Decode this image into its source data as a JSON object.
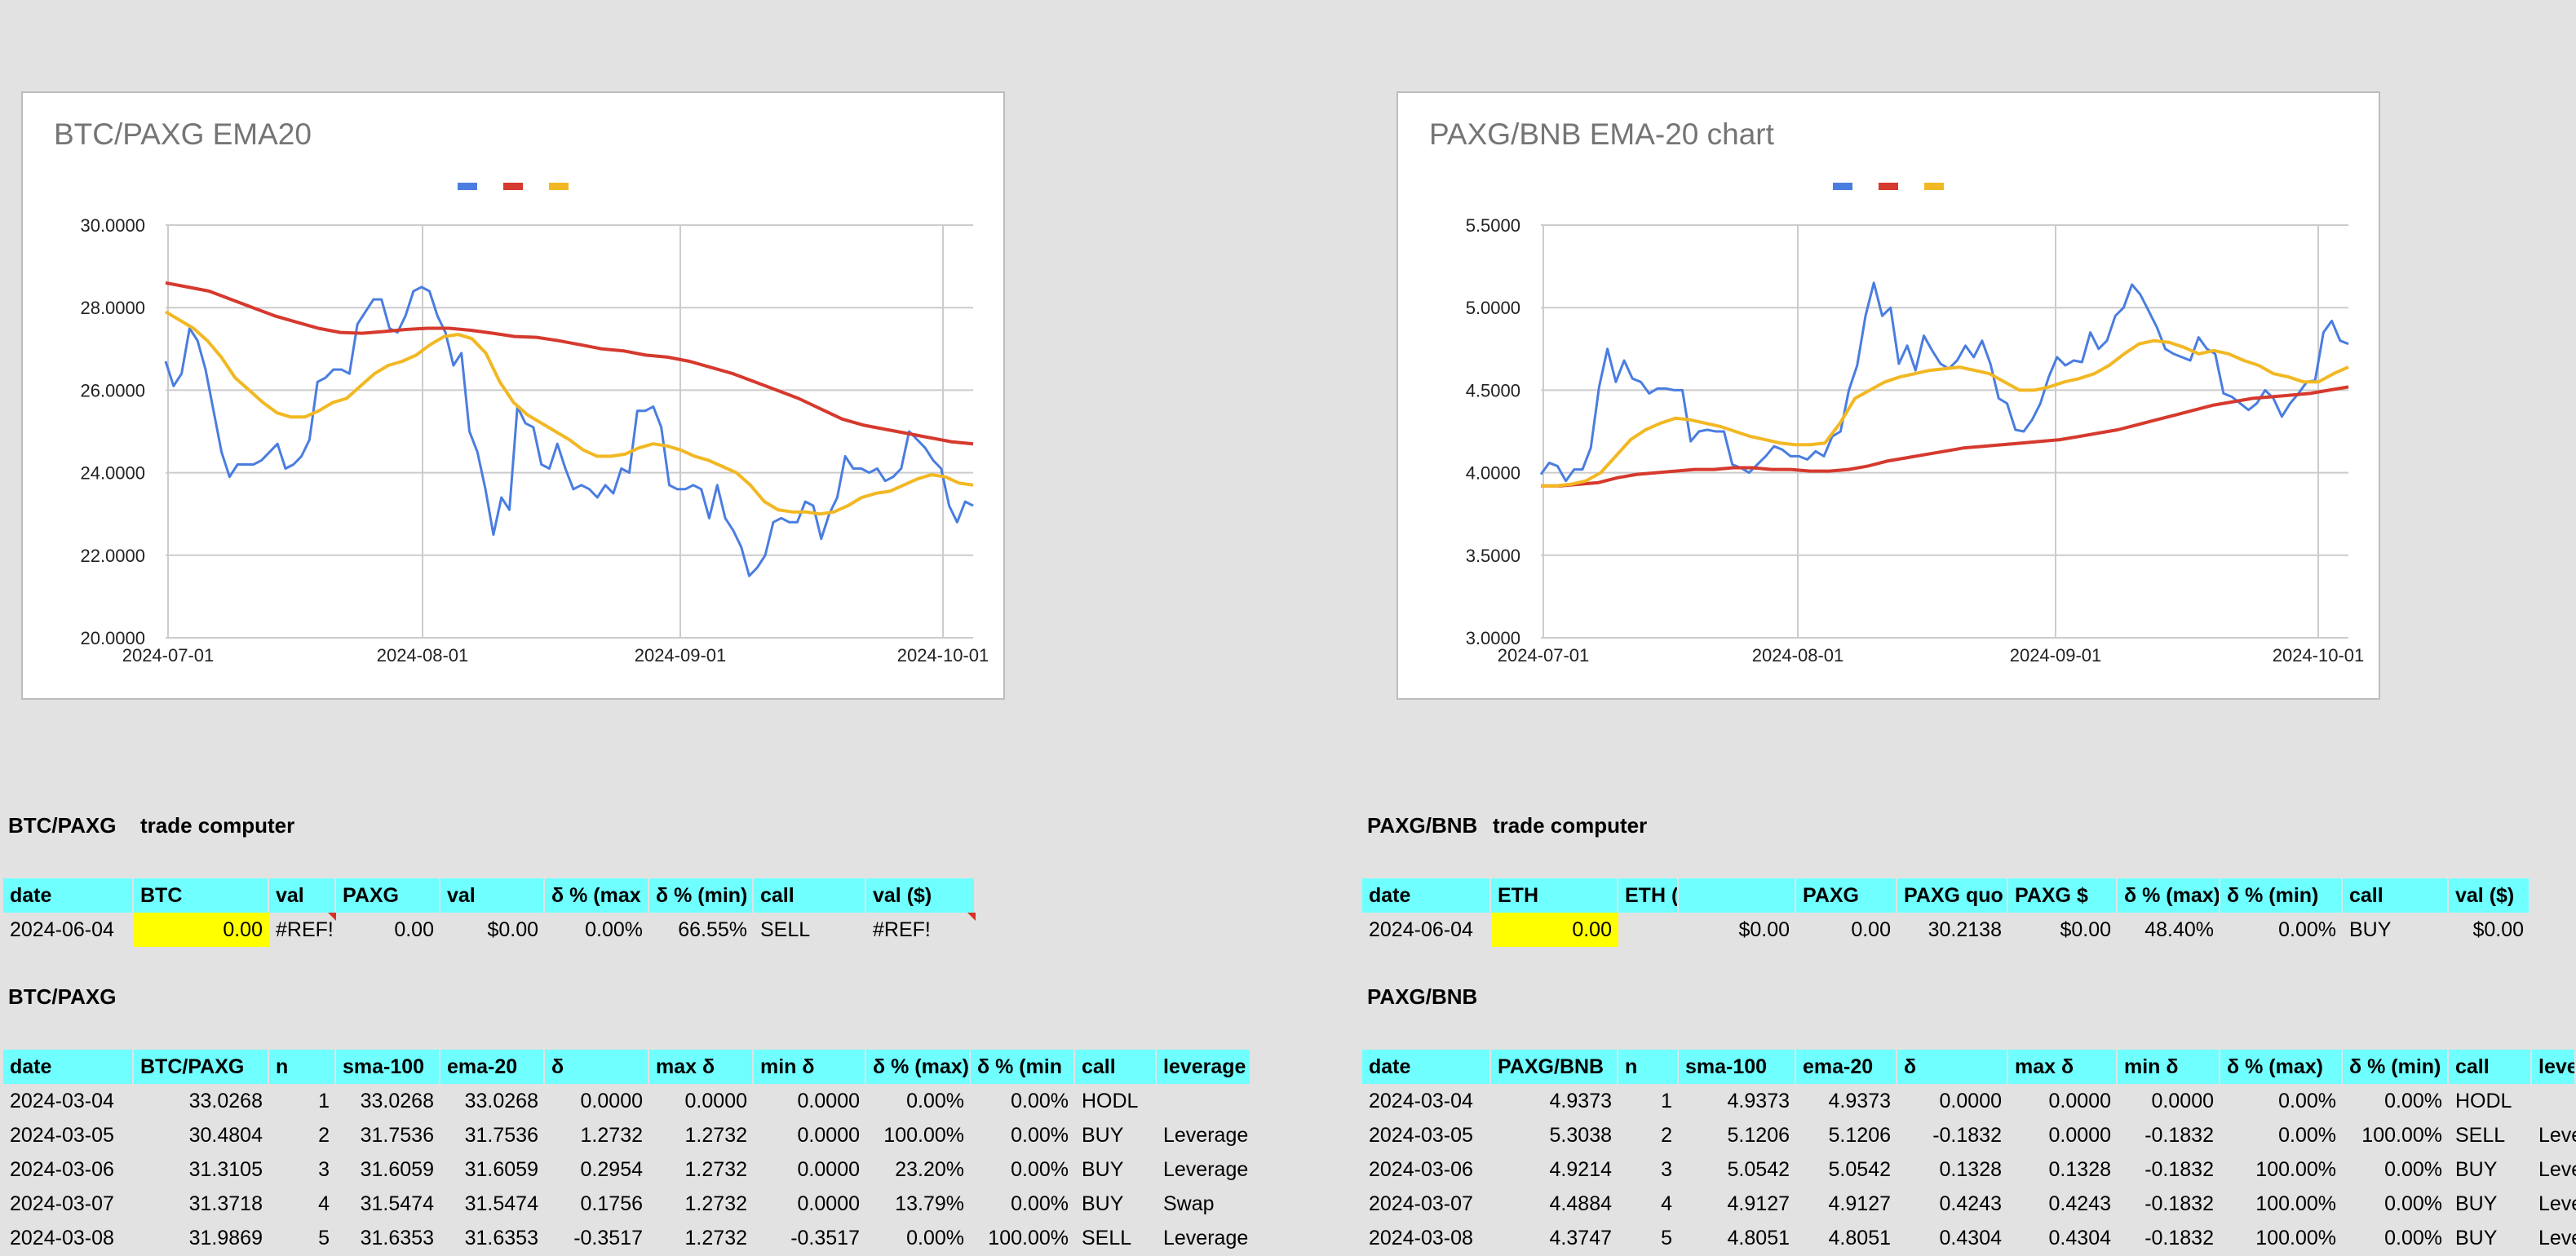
{
  "colors": {
    "blue": "#4a7de0",
    "red": "#d6392e",
    "yellow": "#f2b824",
    "header": "#6fffff",
    "input": "#ffff00"
  },
  "chart_data": [
    {
      "type": "line",
      "title": "BTC/PAXG EMA20",
      "legend_position": "top",
      "grid": true,
      "yticks": [
        "30.0000",
        "28.0000",
        "26.0000",
        "24.0000",
        "22.0000",
        "20.0000"
      ],
      "xticks": [
        "2024-07-01",
        "2024-08-01",
        "2024-09-01",
        "2024-10-01"
      ],
      "ylim": [
        20,
        30
      ],
      "series": [
        {
          "color": "#4a7de0",
          "values": [
            26.7,
            26.1,
            26.4,
            27.5,
            27.2,
            26.5,
            25.5,
            24.5,
            23.9,
            24.2,
            24.2,
            24.2,
            24.3,
            24.5,
            24.7,
            24.1,
            24.2,
            24.4,
            24.8,
            26.2,
            26.3,
            26.5,
            26.5,
            26.4,
            27.6,
            27.9,
            28.2,
            28.2,
            27.5,
            27.4,
            27.8,
            28.4,
            28.5,
            28.4,
            27.8,
            27.4,
            26.6,
            26.9,
            25.0,
            24.5,
            23.6,
            22.5,
            23.4,
            23.1,
            25.6,
            25.2,
            25.1,
            24.2,
            24.1,
            24.7,
            24.1,
            23.6,
            23.7,
            23.6,
            23.4,
            23.7,
            23.5,
            24.1,
            24.0,
            25.5,
            25.5,
            25.6,
            25.1,
            23.7,
            23.6,
            23.6,
            23.7,
            23.6,
            22.9,
            23.7,
            22.9,
            22.6,
            22.2,
            21.5,
            21.7,
            22.0,
            22.8,
            22.9,
            22.8,
            22.8,
            23.3,
            23.2,
            22.4,
            23.0,
            23.4,
            24.4,
            24.1,
            24.1,
            24.0,
            24.1,
            23.8,
            23.9,
            24.1,
            25.0,
            24.8,
            24.6,
            24.3,
            24.1,
            23.2,
            22.8,
            23.3,
            23.2
          ]
        },
        {
          "color": "#d6392e",
          "values": [
            28.6,
            28.5,
            28.4,
            28.2,
            28.0,
            27.8,
            27.65,
            27.5,
            27.4,
            27.38,
            27.42,
            27.47,
            27.5,
            27.5,
            27.45,
            27.38,
            27.3,
            27.28,
            27.2,
            27.1,
            27.0,
            26.95,
            26.85,
            26.8,
            26.7,
            26.55,
            26.4,
            26.2,
            26.0,
            25.8,
            25.55,
            25.3,
            25.15,
            25.05,
            24.95,
            24.85,
            24.75,
            24.7
          ]
        },
        {
          "color": "#f2b824",
          "values": [
            27.9,
            27.7,
            27.5,
            27.2,
            26.8,
            26.3,
            26.0,
            25.7,
            25.45,
            25.35,
            25.35,
            25.5,
            25.7,
            25.8,
            26.1,
            26.4,
            26.6,
            26.7,
            26.85,
            27.1,
            27.3,
            27.35,
            27.25,
            26.9,
            26.2,
            25.7,
            25.4,
            25.2,
            25.0,
            24.8,
            24.55,
            24.4,
            24.4,
            24.45,
            24.6,
            24.7,
            24.65,
            24.55,
            24.4,
            24.3,
            24.15,
            24.0,
            23.7,
            23.3,
            23.1,
            23.05,
            23.05,
            23.0,
            23.05,
            23.2,
            23.4,
            23.5,
            23.55,
            23.7,
            23.85,
            23.95,
            23.9,
            23.75,
            23.7
          ]
        }
      ]
    },
    {
      "type": "line",
      "title": "PAXG/BNB EMA-20 chart",
      "legend_position": "top",
      "grid": true,
      "yticks": [
        "5.5000",
        "5.0000",
        "4.5000",
        "4.0000",
        "3.5000",
        "3.0000"
      ],
      "xticks": [
        "2024-07-01",
        "2024-08-01",
        "2024-09-01",
        "2024-10-01"
      ],
      "ylim": [
        3,
        5.5
      ],
      "series": [
        {
          "color": "#4a7de0",
          "values": [
            3.99,
            4.06,
            4.04,
            3.95,
            4.02,
            4.02,
            4.15,
            4.52,
            4.75,
            4.55,
            4.68,
            4.57,
            4.55,
            4.48,
            4.51,
            4.51,
            4.5,
            4.5,
            4.19,
            4.25,
            4.26,
            4.25,
            4.25,
            4.05,
            4.03,
            4.0,
            4.05,
            4.1,
            4.16,
            4.14,
            4.1,
            4.1,
            4.08,
            4.13,
            4.1,
            4.22,
            4.25,
            4.5,
            4.65,
            4.95,
            5.15,
            4.95,
            5.0,
            4.66,
            4.77,
            4.62,
            4.83,
            4.74,
            4.66,
            4.63,
            4.68,
            4.77,
            4.7,
            4.8,
            4.66,
            4.45,
            4.42,
            4.26,
            4.25,
            4.32,
            4.42,
            4.58,
            4.7,
            4.65,
            4.68,
            4.67,
            4.85,
            4.75,
            4.8,
            4.95,
            5.0,
            5.14,
            5.08,
            4.98,
            4.88,
            4.75,
            4.72,
            4.7,
            4.68,
            4.82,
            4.75,
            4.72,
            4.48,
            4.46,
            4.42,
            4.38,
            4.42,
            4.5,
            4.45,
            4.34,
            4.42,
            4.48,
            4.55,
            4.56,
            4.85,
            4.92,
            4.8,
            4.78
          ]
        },
        {
          "color": "#d6392e",
          "values": [
            3.92,
            3.92,
            3.93,
            3.94,
            3.97,
            3.99,
            4.0,
            4.01,
            4.02,
            4.02,
            4.03,
            4.03,
            4.02,
            4.02,
            4.01,
            4.01,
            4.02,
            4.04,
            4.07,
            4.09,
            4.11,
            4.13,
            4.15,
            4.16,
            4.17,
            4.18,
            4.19,
            4.2,
            4.22,
            4.24,
            4.26,
            4.29,
            4.32,
            4.35,
            4.38,
            4.41,
            4.43,
            4.45,
            4.46,
            4.47,
            4.48,
            4.5,
            4.52
          ]
        },
        {
          "color": "#f2b824",
          "values": [
            3.92,
            3.92,
            3.93,
            3.95,
            4.0,
            4.1,
            4.2,
            4.26,
            4.3,
            4.33,
            4.32,
            4.3,
            4.28,
            4.25,
            4.22,
            4.2,
            4.18,
            4.17,
            4.17,
            4.18,
            4.3,
            4.45,
            4.5,
            4.55,
            4.58,
            4.6,
            4.62,
            4.63,
            4.64,
            4.62,
            4.6,
            4.55,
            4.5,
            4.5,
            4.52,
            4.55,
            4.57,
            4.6,
            4.65,
            4.72,
            4.78,
            4.8,
            4.79,
            4.76,
            4.72,
            4.74,
            4.72,
            4.68,
            4.65,
            4.6,
            4.58,
            4.55,
            4.55,
            4.6,
            4.64
          ]
        }
      ]
    }
  ],
  "left": {
    "trade_label1": "BTC/PAXG",
    "trade_label2": "trade computer",
    "trade_headers": [
      "date",
      "BTC",
      "val",
      "PAXG",
      "val",
      "δ % (max",
      "δ % (min)",
      "call",
      "val ($)"
    ],
    "trade_row": [
      "2024-06-04",
      "0.00",
      "#REF!",
      "0.00",
      "$0.00",
      "0.00%",
      "66.55%",
      "SELL",
      "#REF!"
    ],
    "data_label": "BTC/PAXG",
    "data_headers": [
      "date",
      "BTC/PAXG",
      "n",
      "sma-100",
      "ema-20",
      "δ",
      "max δ",
      "min δ",
      "δ % (max)",
      "δ % (min",
      "call",
      "leverage"
    ],
    "rows": [
      [
        "2024-03-04",
        "33.0268",
        "1",
        "33.0268",
        "33.0268",
        "0.0000",
        "0.0000",
        "0.0000",
        "0.00%",
        "0.00%",
        "HODL",
        ""
      ],
      [
        "2024-03-05",
        "30.4804",
        "2",
        "31.7536",
        "31.7536",
        "1.2732",
        "1.2732",
        "0.0000",
        "100.00%",
        "0.00%",
        "BUY",
        "Leverage"
      ],
      [
        "2024-03-06",
        "31.3105",
        "3",
        "31.6059",
        "31.6059",
        "0.2954",
        "1.2732",
        "0.0000",
        "23.20%",
        "0.00%",
        "BUY",
        "Leverage"
      ],
      [
        "2024-03-07",
        "31.3718",
        "4",
        "31.5474",
        "31.5474",
        "0.1756",
        "1.2732",
        "0.0000",
        "13.79%",
        "0.00%",
        "BUY",
        "Swap"
      ],
      [
        "2024-03-08",
        "31.9869",
        "5",
        "31.6353",
        "31.6353",
        "-0.3517",
        "1.2732",
        "-0.3517",
        "0.00%",
        "100.00%",
        "SELL",
        "Leverage"
      ]
    ]
  },
  "right": {
    "trade_label1": "PAXG/BNB",
    "trade_label2": "trade computer",
    "trade_headers": [
      "date",
      "ETH",
      "ETH ( ETH $",
      "",
      "PAXG",
      "PAXG quo",
      "PAXG $",
      "δ % (max)",
      "δ % (min)",
      "call",
      "val ($)"
    ],
    "trade_row": [
      "2024-06-04",
      "0.00",
      "",
      "$0.00",
      "0.00",
      "30.2138",
      "$0.00",
      "48.40%",
      "0.00%",
      "BUY",
      "$0.00"
    ],
    "data_label": "PAXG/BNB",
    "data_headers": [
      "date",
      "PAXG/BNB",
      "n",
      "sma-100",
      "ema-20",
      "δ",
      "max δ",
      "min δ",
      "δ % (max)",
      "δ % (min)",
      "call",
      "leve"
    ],
    "rows": [
      [
        "2024-03-04",
        "4.9373",
        "1",
        "4.9373",
        "4.9373",
        "0.0000",
        "0.0000",
        "0.0000",
        "0.00%",
        "0.00%",
        "HODL",
        ""
      ],
      [
        "2024-03-05",
        "5.3038",
        "2",
        "5.1206",
        "5.1206",
        "-0.1832",
        "0.0000",
        "-0.1832",
        "0.00%",
        "100.00%",
        "SELL",
        "Leve"
      ],
      [
        "2024-03-06",
        "4.9214",
        "3",
        "5.0542",
        "5.0542",
        "0.1328",
        "0.1328",
        "-0.1832",
        "100.00%",
        "0.00%",
        "BUY",
        "Leve"
      ],
      [
        "2024-03-07",
        "4.4884",
        "4",
        "4.9127",
        "4.9127",
        "0.4243",
        "0.4243",
        "-0.1832",
        "100.00%",
        "0.00%",
        "BUY",
        "Leve"
      ],
      [
        "2024-03-08",
        "4.3747",
        "5",
        "4.8051",
        "4.8051",
        "0.4304",
        "0.4304",
        "-0.1832",
        "100.00%",
        "0.00%",
        "BUY",
        "Leve"
      ]
    ]
  }
}
